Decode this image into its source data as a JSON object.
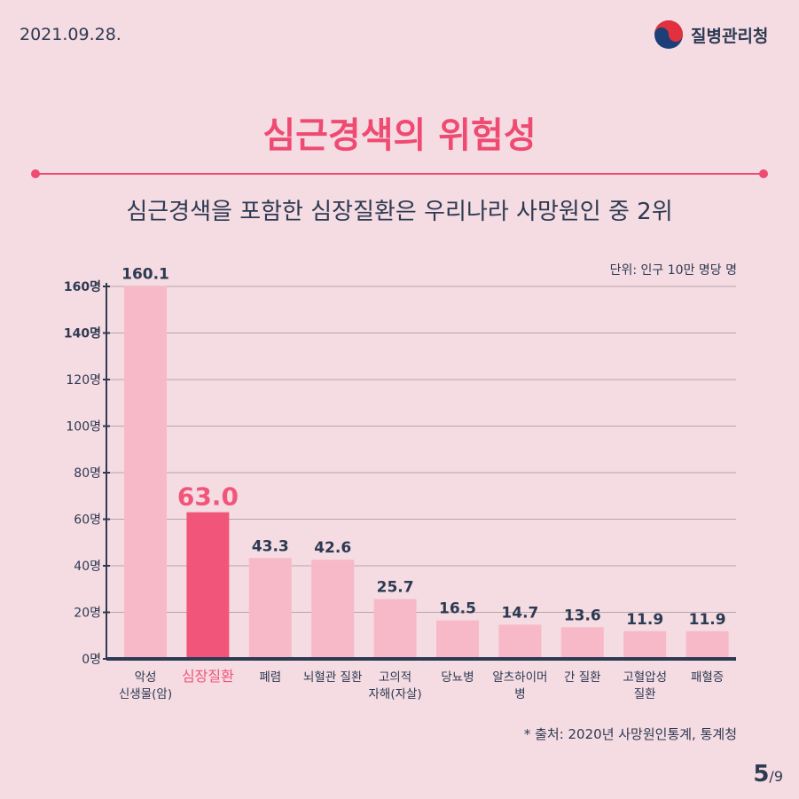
{
  "header": {
    "date": "2021.09.28.",
    "org": "질병관리청"
  },
  "title": "심근경색의 위험성",
  "subtitle": "심근경색을 포함한 심장질환은 우리나라 사망원인 중 2위",
  "unit": "단위: 인구 10만 명당 명",
  "source": "* 출처: 2020년 사망원인통계, 통계청",
  "pagination": {
    "current": "5",
    "total": "/9"
  },
  "colors": {
    "background": "#f5dbe2",
    "bar": "#f7b9c7",
    "highlight": "#f2557a",
    "title": "#ee4a72",
    "text": "#2c3a52"
  },
  "chart_data": {
    "type": "bar",
    "categories": [
      "악성\n신생물(암)",
      "심장질환",
      "폐렴",
      "뇌혈관 질환",
      "고의적\n자해(자살)",
      "당뇨병",
      "알츠하이머\n병",
      "간 질환",
      "고혈압성\n질환",
      "패혈증"
    ],
    "values": [
      160.1,
      63.0,
      43.3,
      42.6,
      25.7,
      16.5,
      14.7,
      13.6,
      11.9,
      11.9
    ],
    "data_labels": [
      "160.1",
      "63.0",
      "43.3",
      "42.6",
      "25.7",
      "16.5",
      "14.7",
      "13.6",
      "11.9",
      "11.9"
    ],
    "highlight_index": 1,
    "ylim": [
      0,
      160
    ],
    "yticks": [
      "0명",
      "20명",
      "40명",
      "60명",
      "80명",
      "100명",
      "120명",
      "140명",
      "160명"
    ],
    "grid": true
  }
}
